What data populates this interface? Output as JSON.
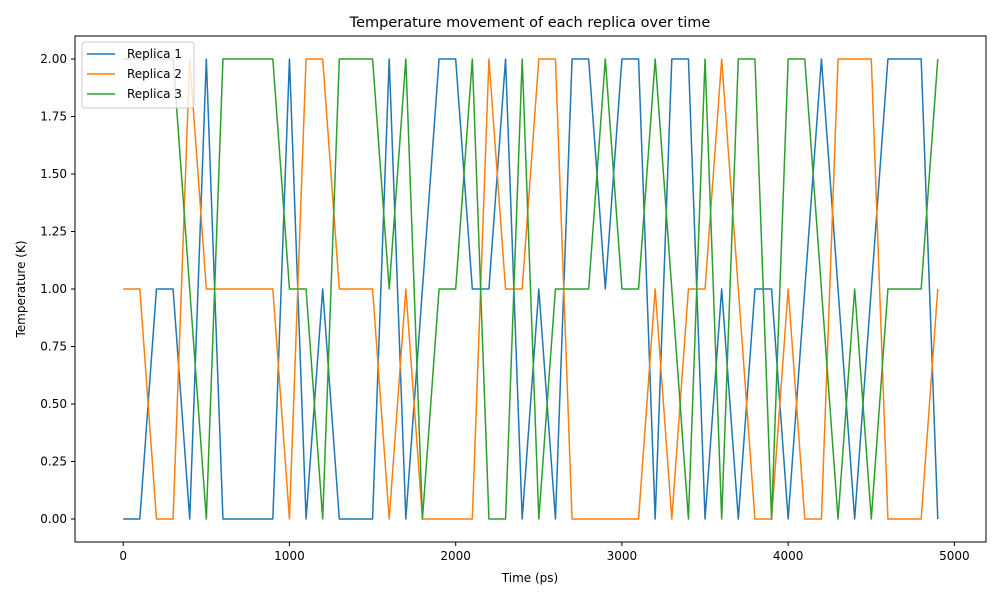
{
  "chart_data": {
    "type": "line",
    "title": "Temperature movement of each replica over time",
    "xlabel": "Time (ps)",
    "ylabel": "Temperature (K)",
    "xlim": [
      -290,
      5190
    ],
    "ylim": [
      -0.1,
      2.1
    ],
    "xticks": [
      0,
      1000,
      2000,
      3000,
      4000,
      5000
    ],
    "xtick_labels": [
      "0",
      "1000",
      "2000",
      "3000",
      "4000",
      "5000"
    ],
    "yticks": [
      0,
      0.25,
      0.5,
      0.75,
      1.0,
      1.25,
      1.5,
      1.75,
      2.0
    ],
    "ytick_labels": [
      "0.00",
      "0.25",
      "0.50",
      "0.75",
      "1.00",
      "1.25",
      "1.50",
      "1.75",
      "2.00"
    ],
    "grid": false,
    "legend": "top-left",
    "x": [
      0,
      100,
      200,
      300,
      400,
      500,
      600,
      700,
      800,
      900,
      1000,
      1100,
      1200,
      1300,
      1400,
      1500,
      1600,
      1700,
      1800,
      1900,
      2000,
      2100,
      2200,
      2300,
      2400,
      2500,
      2600,
      2700,
      2800,
      2900,
      3000,
      3100,
      3200,
      3300,
      3400,
      3500,
      3600,
      3700,
      3800,
      3900,
      4000,
      4100,
      4200,
      4300,
      4400,
      4500,
      4600,
      4700,
      4800,
      4900
    ],
    "series": [
      {
        "name": "Replica 1",
        "color": "#1f77b4",
        "values": [
          0,
          0,
          1,
          1,
          0,
          2,
          0,
          0,
          0,
          0,
          2,
          0,
          1,
          0,
          0,
          0,
          2,
          0,
          1,
          2,
          2,
          1,
          1,
          2,
          0,
          1,
          0,
          2,
          2,
          1,
          2,
          2,
          0,
          2,
          2,
          0,
          1,
          0,
          1,
          1,
          0,
          1,
          2,
          1,
          0,
          1,
          2,
          2,
          2,
          0
        ]
      },
      {
        "name": "Replica 2",
        "color": "#ff7f0e",
        "values": [
          1,
          1,
          0,
          0,
          2,
          1,
          1,
          1,
          1,
          1,
          0,
          2,
          2,
          1,
          1,
          1,
          0,
          1,
          0,
          0,
          0,
          0,
          2,
          1,
          1,
          2,
          2,
          0,
          0,
          0,
          0,
          0,
          1,
          0,
          1,
          1,
          2,
          1,
          0,
          0,
          1,
          0,
          0,
          2,
          2,
          2,
          0,
          0,
          0,
          1
        ]
      },
      {
        "name": "Replica 3",
        "color": "#2ca02c",
        "values": [
          2,
          2,
          2,
          2,
          1,
          0,
          2,
          2,
          2,
          2,
          1,
          1,
          0,
          2,
          2,
          2,
          1,
          2,
          0,
          1,
          1,
          2,
          0,
          0,
          2,
          0,
          1,
          1,
          1,
          2,
          1,
          1,
          2,
          1,
          0,
          2,
          0,
          2,
          2,
          0,
          2,
          2,
          1,
          0,
          1,
          0,
          1,
          1,
          1,
          2
        ]
      }
    ]
  }
}
